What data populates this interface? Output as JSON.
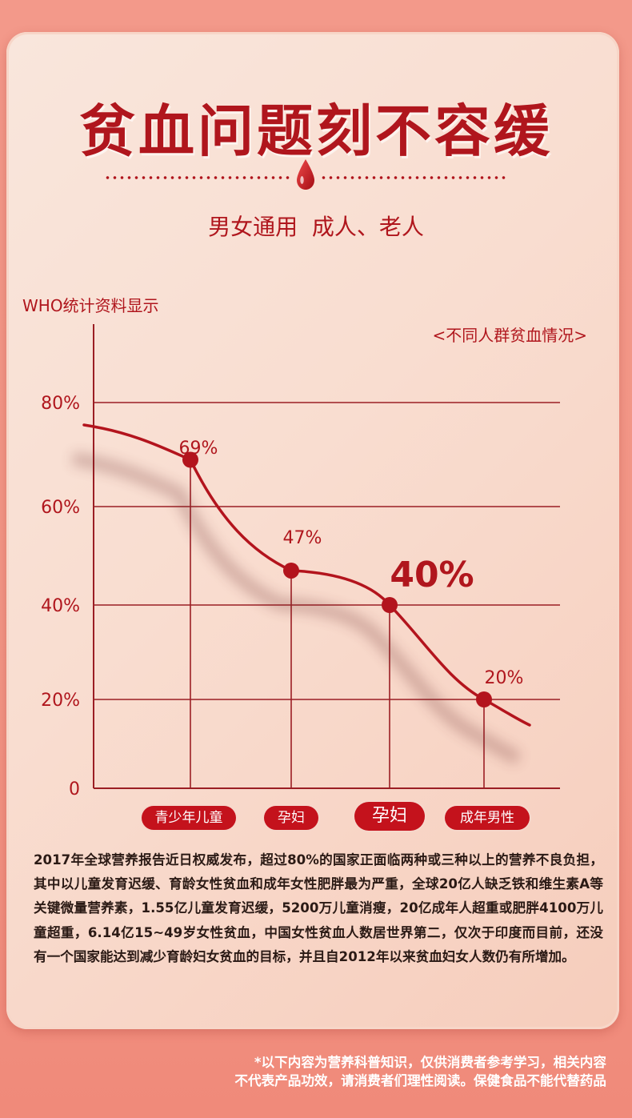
{
  "header": {
    "title": "贫血问题刻不容缓",
    "subtitle": "男女通用  成人、老人"
  },
  "chart_header": {
    "source": "WHO统计资料显示",
    "legend": "<不同人群贫血情况>"
  },
  "chart_data": {
    "type": "line",
    "categories": [
      "青少年儿童",
      "孕妇",
      "孕妇",
      "成年男性"
    ],
    "values": [
      69,
      47,
      40,
      20
    ],
    "data_labels": [
      "69%",
      "47%",
      "40%",
      "20%"
    ],
    "highlight_index": 2,
    "y_ticks": [
      {
        "value": 0,
        "label": "0"
      },
      {
        "value": 20,
        "label": "20%"
      },
      {
        "value": 40,
        "label": "40%"
      },
      {
        "value": 60,
        "label": "60%"
      },
      {
        "value": 80,
        "label": "80%"
      }
    ],
    "ylim": [
      0,
      80
    ],
    "grid": true,
    "line_color": "#b3141d",
    "axis_color": "#9b1e24"
  },
  "description": "2017年全球营养报告近日权威发布，超过80%的国家正面临两种或三种以上的营养不良负担，其中以儿童发育迟缓、育龄女性贫血和成年女性肥胖最为严重，全球20亿人缺乏铁和维生素A等关键微量营养素，1.55亿儿童发育迟缓，5200万儿童消瘦，20亿成年人超重或肥胖4100万儿童超重，6.14亿15~49岁女性贫血，中国女性贫血人数居世界第二，仅次于印度而目前，还没有一个国家能达到减少育龄妇女贫血的目标，并且自2012年以来贫血妇女人数仍有所增加。",
  "disclaimer": {
    "line1": "*以下内容为营养科普知识，仅供消费者参考学习，相关内容",
    "line2": "不代表产品功效，请消费者们理性阅读。保健食品不能代替药品"
  },
  "icons": {
    "drop": "blood-drop-icon"
  }
}
